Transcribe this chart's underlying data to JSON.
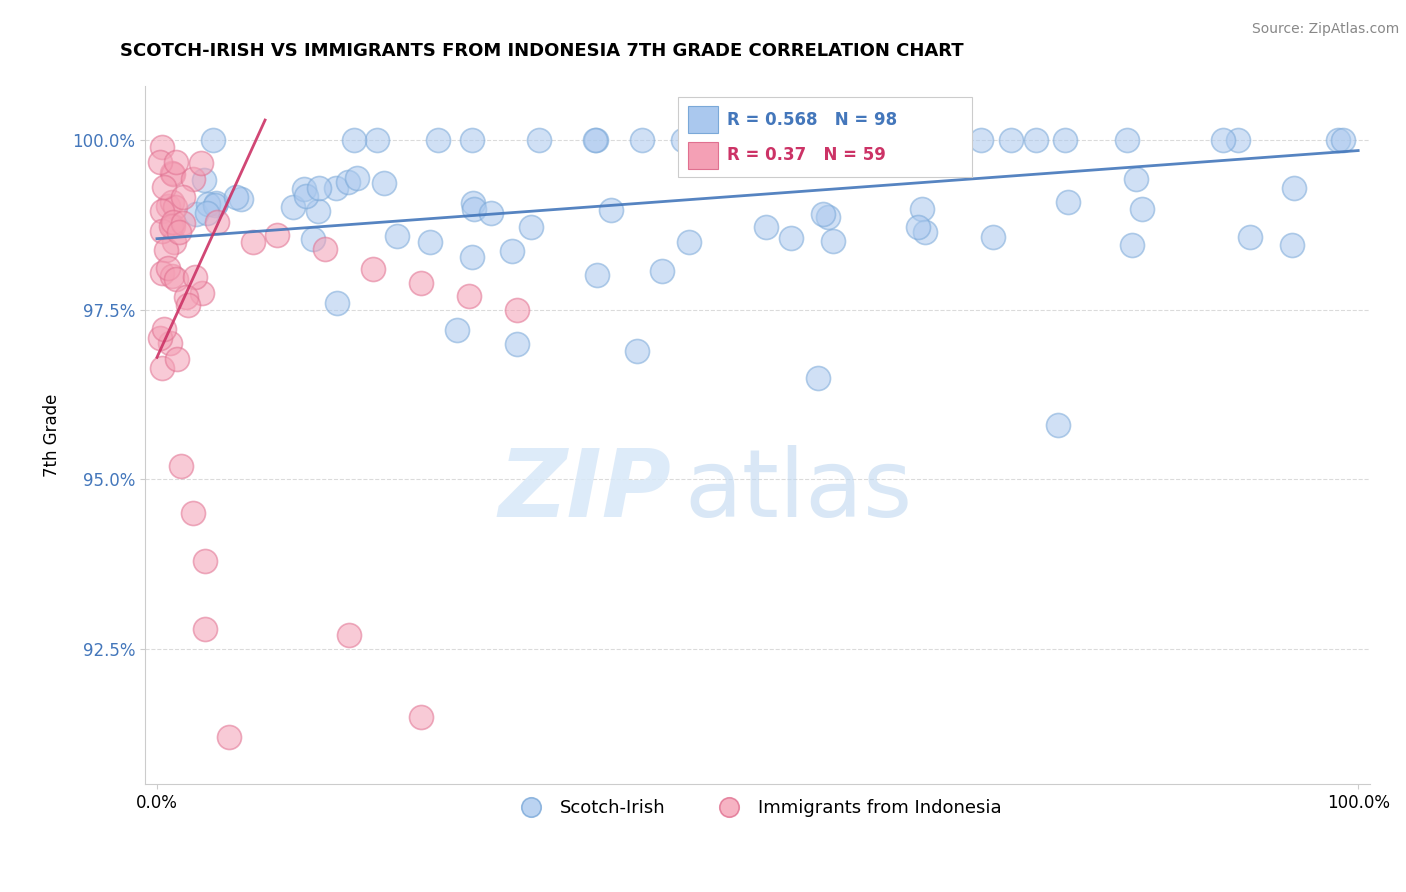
{
  "title": "SCOTCH-IRISH VS IMMIGRANTS FROM INDONESIA 7TH GRADE CORRELATION CHART",
  "ylabel": "7th Grade",
  "source": "Source: ZipAtlas.com",
  "xlim": [
    -1.0,
    101.0
  ],
  "ylim": [
    90.5,
    100.8
  ],
  "yticks": [
    92.5,
    95.0,
    97.5,
    100.0
  ],
  "ytick_labels": [
    "92.5%",
    "95.0%",
    "97.5%",
    "100.0%"
  ],
  "xtick_labels": [
    "0.0%",
    "100.0%"
  ],
  "blue_R": 0.568,
  "blue_N": 98,
  "pink_R": 0.37,
  "pink_N": 59,
  "blue_color": "#aac8ee",
  "pink_color": "#f4a0b5",
  "blue_edge_color": "#7aa8d8",
  "pink_edge_color": "#e07090",
  "blue_line_color": "#4477bb",
  "pink_line_color": "#cc3366",
  "legend_blue_label": "Scotch-Irish",
  "legend_pink_label": "Immigrants from Indonesia",
  "watermark_zip": "ZIP",
  "watermark_atlas": "atlas",
  "blue_line_x0": 0,
  "blue_line_x1": 100,
  "blue_line_y0": 98.55,
  "blue_line_y1": 99.85,
  "pink_line_x0": 0,
  "pink_line_x1": 9,
  "pink_line_y0": 96.8,
  "pink_line_y1": 100.3
}
